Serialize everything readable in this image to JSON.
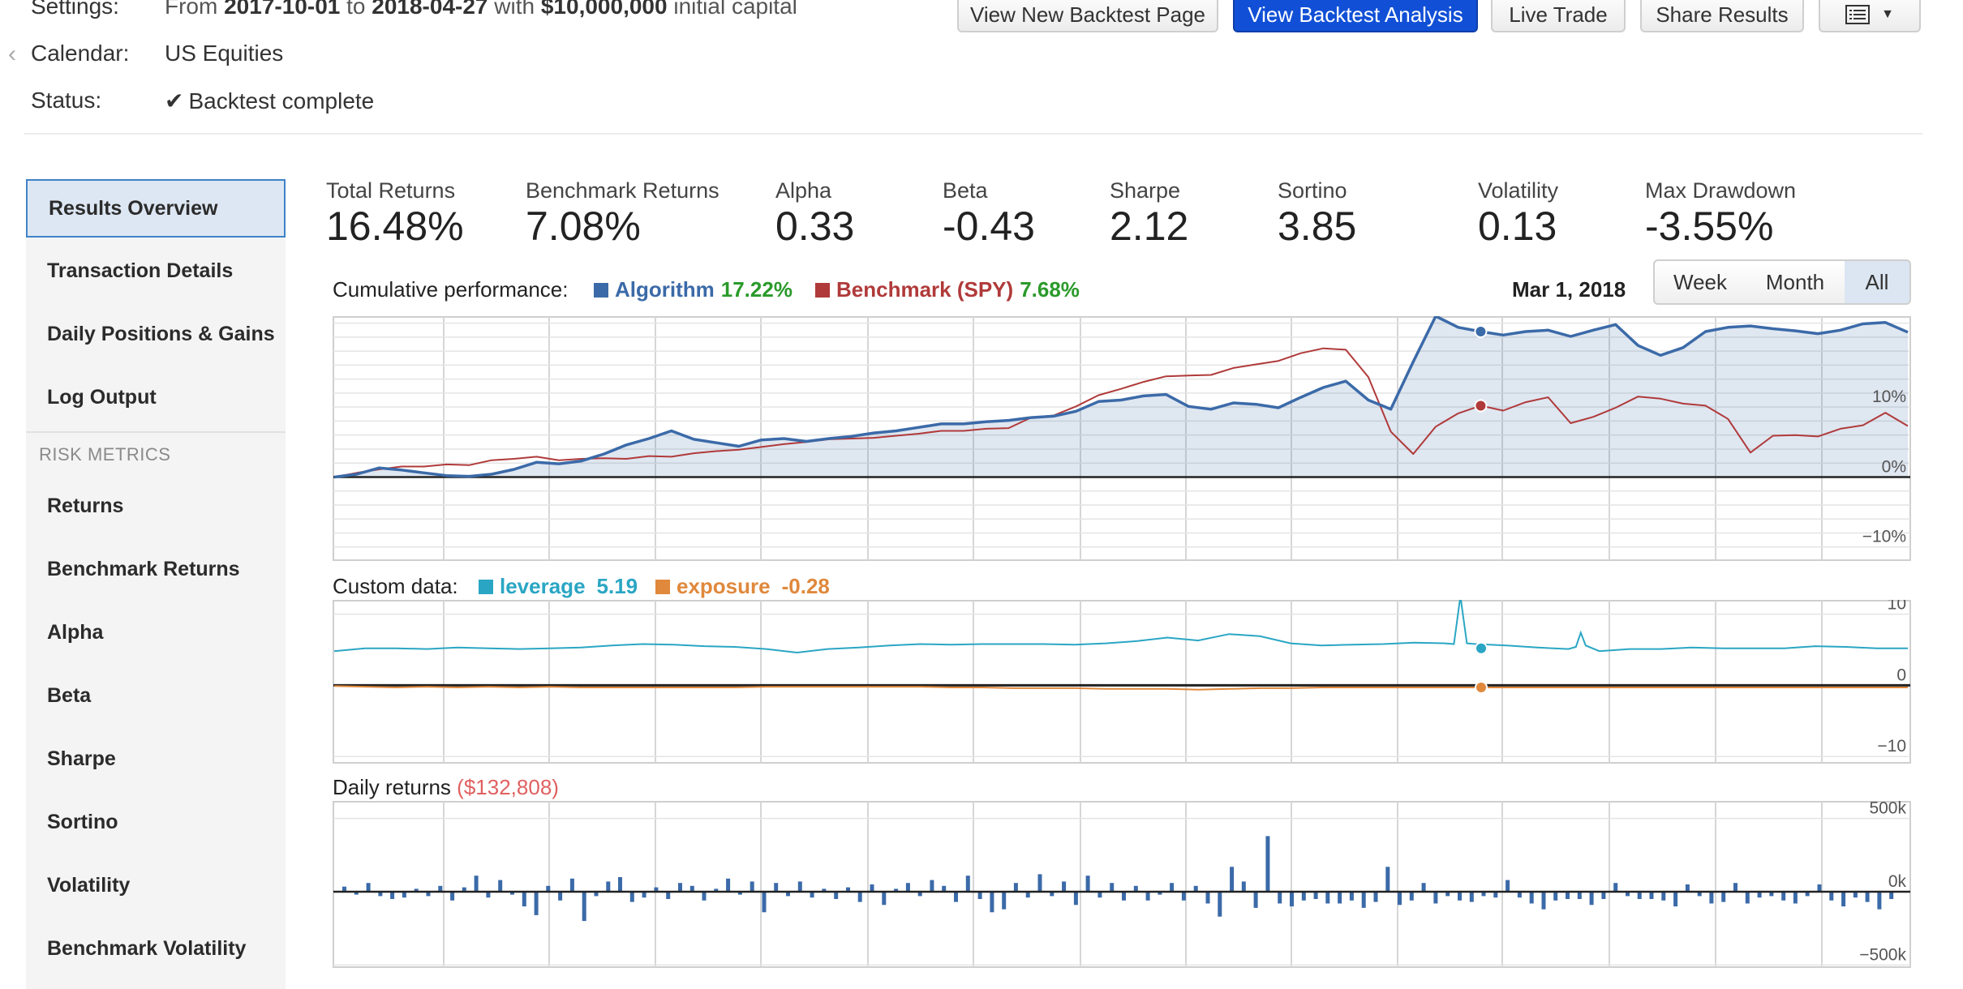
{
  "header": {
    "settings_label": "Settings:",
    "settings_prefix": "From",
    "start_date": "2017-10-01",
    "to_word": "to",
    "end_date": "2018-04-27",
    "with_word": "with",
    "capital": "$10,000,000",
    "capital_suffix": "initial capital",
    "calendar_label": "Calendar:",
    "calendar_value": "US Equities",
    "status_label": "Status:",
    "status_value": "Backtest complete",
    "status_icon": "check-icon"
  },
  "toolbar": {
    "new_backtest": "View New Backtest Page",
    "analysis": "View Backtest Analysis",
    "live_trade": "Live Trade",
    "share": "Share Results",
    "menu_icon": "list-icon",
    "menu_caret": "▼",
    "accent": "#1150d6"
  },
  "sidebar": {
    "items": [
      {
        "label": "Results Overview"
      },
      {
        "label": "Transaction Details"
      },
      {
        "label": "Daily Positions & Gains"
      },
      {
        "label": "Log Output"
      }
    ],
    "section": "RISK METRICS",
    "metrics": [
      {
        "label": "Returns"
      },
      {
        "label": "Benchmark Returns"
      },
      {
        "label": "Alpha"
      },
      {
        "label": "Beta"
      },
      {
        "label": "Sharpe"
      },
      {
        "label": "Sortino"
      },
      {
        "label": "Volatility"
      },
      {
        "label": "Benchmark Volatility"
      }
    ]
  },
  "metrics": [
    {
      "label": "Total Returns",
      "value": "16.48%"
    },
    {
      "label": "Benchmark Returns",
      "value": "7.08%"
    },
    {
      "label": "Alpha",
      "value": "0.33"
    },
    {
      "label": "Beta",
      "value": "-0.43"
    },
    {
      "label": "Sharpe",
      "value": "2.12"
    },
    {
      "label": "Sortino",
      "value": "3.85"
    },
    {
      "label": "Volatility",
      "value": "0.13"
    },
    {
      "label": "Max Drawdown",
      "value": "-3.55%"
    }
  ],
  "cumulative": {
    "title": "Cumulative performance:",
    "algo_name": "Algorithm",
    "algo_value": "17.22%",
    "bench_name": "Benchmark (SPY)",
    "bench_value": "7.68%",
    "hover_date": "Mar 1, 2018",
    "ranges": [
      "Week",
      "Month",
      "All"
    ],
    "active_range": "All"
  },
  "custom": {
    "title": "Custom data:",
    "lev_name": "leverage",
    "lev_value": "5.19",
    "exp_name": "exposure",
    "exp_value": "-0.28"
  },
  "daily": {
    "title": "Daily returns",
    "value": "($132,808)"
  },
  "colors": {
    "algo": "#3b6aa8",
    "bench": "#b03a3a",
    "leverage": "#2aa6c4",
    "exposure": "#e0883c",
    "positive": "#2a9a2a",
    "negative": "#e06060"
  },
  "chart_data": [
    {
      "type": "line",
      "title": "Cumulative performance",
      "ylabel": "",
      "ylim": [
        -12,
        23
      ],
      "yticks": [
        "10%",
        "0%",
        "−10%"
      ],
      "series": [
        {
          "name": "Algorithm",
          "values": [
            0,
            0.4,
            1.3,
            1,
            0.6,
            0.2,
            0.1,
            0.4,
            1.1,
            2.1,
            1.9,
            2.3,
            3.3,
            4.6,
            5.5,
            6.6,
            5.4,
            4.9,
            4.4,
            5.3,
            5.5,
            5.1,
            5.5,
            5.8,
            6.3,
            6.6,
            7.1,
            7.6,
            7.6,
            7.9,
            8.1,
            8.5,
            8.7,
            9.4,
            10.8,
            11,
            11.6,
            11.8,
            10.1,
            9.7,
            10.6,
            10.4,
            9.9,
            11.4,
            12.8,
            13.7,
            11,
            9.7,
            16.5,
            23,
            21.4,
            20.8,
            20.3,
            20.8,
            21,
            20.1,
            21,
            21.8,
            18.8,
            17.4,
            18.5,
            20.8,
            21.4,
            21.6,
            21.2,
            20.9,
            20.5,
            21,
            21.9,
            22.1,
            20.7
          ]
        },
        {
          "name": "Benchmark (SPY)",
          "values": [
            0,
            0.6,
            1.1,
            1.5,
            1.5,
            1.8,
            1.7,
            2.4,
            2.6,
            2.9,
            2.4,
            2.6,
            2.7,
            2.6,
            3,
            2.9,
            3.4,
            3.7,
            3.9,
            4.3,
            4.7,
            5,
            5.4,
            5.5,
            5.6,
            5.9,
            6.2,
            6.6,
            6.6,
            6.9,
            7,
            8.5,
            8.8,
            10.1,
            11.7,
            12.6,
            13.6,
            14.4,
            14.5,
            14.6,
            15.6,
            16.1,
            16.6,
            17.7,
            18.4,
            18.2,
            14.3,
            6.5,
            3.3,
            7.2,
            9.1,
            10.2,
            9.5,
            10.7,
            11.4,
            7.7,
            8.6,
            9.9,
            11.5,
            11.2,
            10.5,
            10.2,
            8.3,
            3.5,
            5.9,
            6,
            5.8,
            6.9,
            7.4,
            9.2,
            7.3
          ]
        }
      ]
    },
    {
      "type": "line",
      "title": "Custom data",
      "ylabel": "",
      "ylim": [
        -11,
        12
      ],
      "yticks": [
        "10",
        "0",
        "−10"
      ],
      "series": [
        {
          "name": "leverage",
          "values": [
            4.8,
            5.2,
            5.2,
            5.1,
            5.3,
            5.2,
            5.1,
            5.2,
            5.3,
            5.6,
            5.8,
            5.7,
            5.5,
            5.4,
            5.1,
            4.6,
            5.1,
            5.3,
            5.6,
            5.8,
            5.7,
            5.8,
            5.8,
            5.8,
            5.7,
            5.9,
            6.2,
            6.7,
            6.3,
            7.2,
            6.9,
            5.9,
            5.6,
            5.7,
            5.8,
            6,
            5.9,
            5.8,
            5.6,
            5.3,
            5.1,
            4.8,
            5.1,
            5.1,
            5.3,
            5.2,
            5.2,
            5.2,
            5.5,
            5.4,
            5.2,
            5.2
          ],
          "highlight": {
            "idx": 46,
            "value": 5.2
          }
        },
        {
          "name": "exposure",
          "values": [
            -0.1,
            -0.2,
            -0.3,
            -0.2,
            -0.3,
            -0.2,
            -0.3,
            -0.2,
            -0.3,
            -0.3,
            -0.3,
            -0.3,
            -0.3,
            -0.3,
            -0.2,
            -0.2,
            -0.2,
            -0.2,
            -0.2,
            -0.2,
            -0.3,
            -0.3,
            -0.4,
            -0.4,
            -0.4,
            -0.5,
            -0.5,
            -0.5,
            -0.6,
            -0.5,
            -0.4,
            -0.4,
            -0.3,
            -0.3,
            -0.3,
            -0.3,
            -0.3,
            -0.3,
            -0.3,
            -0.3,
            -0.3,
            -0.3,
            -0.3,
            -0.3,
            -0.3,
            -0.3,
            -0.3,
            -0.3,
            -0.3,
            -0.3,
            -0.3,
            -0.3
          ]
        }
      ]
    },
    {
      "type": "bar",
      "title": "Daily returns",
      "ylabel": "",
      "ylim": [
        -520000,
        620000
      ],
      "yticks": [
        "500k",
        "0k",
        "−500k"
      ],
      "values": [
        35000,
        -20000,
        60000,
        -30000,
        -50000,
        -40000,
        20000,
        -30000,
        40000,
        -60000,
        30000,
        110000,
        -40000,
        80000,
        -20000,
        -100000,
        -160000,
        40000,
        -60000,
        90000,
        -200000,
        -30000,
        70000,
        100000,
        -70000,
        -40000,
        30000,
        -50000,
        60000,
        40000,
        -60000,
        20000,
        90000,
        -20000,
        70000,
        -140000,
        60000,
        -30000,
        70000,
        -40000,
        20000,
        -50000,
        30000,
        -70000,
        50000,
        -90000,
        20000,
        60000,
        -30000,
        80000,
        40000,
        -70000,
        110000,
        -50000,
        -140000,
        -120000,
        60000,
        -40000,
        120000,
        -30000,
        70000,
        -90000,
        110000,
        -40000,
        60000,
        -60000,
        40000,
        -60000,
        -20000,
        60000,
        -60000,
        40000,
        -80000,
        -170000,
        170000,
        70000,
        -110000,
        380000,
        -80000,
        -100000,
        -60000,
        -50000,
        -80000,
        -80000,
        -60000,
        -110000,
        -70000,
        170000,
        -90000,
        -60000,
        60000,
        -80000,
        -30000,
        -60000,
        -70000,
        -30000,
        -40000,
        80000,
        -40000,
        -80000,
        -120000,
        -60000,
        -50000,
        -50000,
        -90000,
        -50000,
        60000,
        -30000,
        -50000,
        -50000,
        -60000,
        -100000,
        50000,
        -30000,
        -80000,
        -70000,
        60000,
        -80000,
        -40000,
        -30000,
        -60000,
        -80000,
        -30000,
        50000,
        -60000,
        -100000,
        -40000,
        -70000,
        -120000,
        -50000
      ]
    }
  ]
}
